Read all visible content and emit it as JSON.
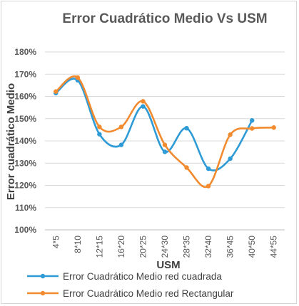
{
  "chart_data": {
    "type": "line",
    "title": "Error Cuadrático Medio Vs USM",
    "xlabel": "USM",
    "ylabel": "Error cuadrático Medio",
    "categories": [
      "4*5",
      "8*10",
      "12*15",
      "16*20",
      "20*25",
      "24*30",
      "28*35",
      "32*40",
      "36*45",
      "40*50",
      "44*55"
    ],
    "ylim": [
      1.0,
      1.8
    ],
    "yticks": [
      "100%",
      "110%",
      "120%",
      "130%",
      "140%",
      "150%",
      "160%",
      "170%",
      "180%"
    ],
    "grid": true,
    "legend_position": "bottom",
    "series": [
      {
        "name": "Error Cuadrático Medio red cuadrada",
        "color": "#2E9BD6",
        "values": [
          1.615,
          1.673,
          1.43,
          1.382,
          1.555,
          1.351,
          1.457,
          1.275,
          1.32,
          1.492,
          null
        ]
      },
      {
        "name": "Error Cuadrático Medio red Rectangular",
        "color": "#F28B30",
        "values": [
          1.622,
          1.685,
          1.463,
          1.463,
          1.578,
          1.382,
          1.28,
          1.197,
          1.428,
          1.456,
          1.46
        ]
      }
    ]
  }
}
